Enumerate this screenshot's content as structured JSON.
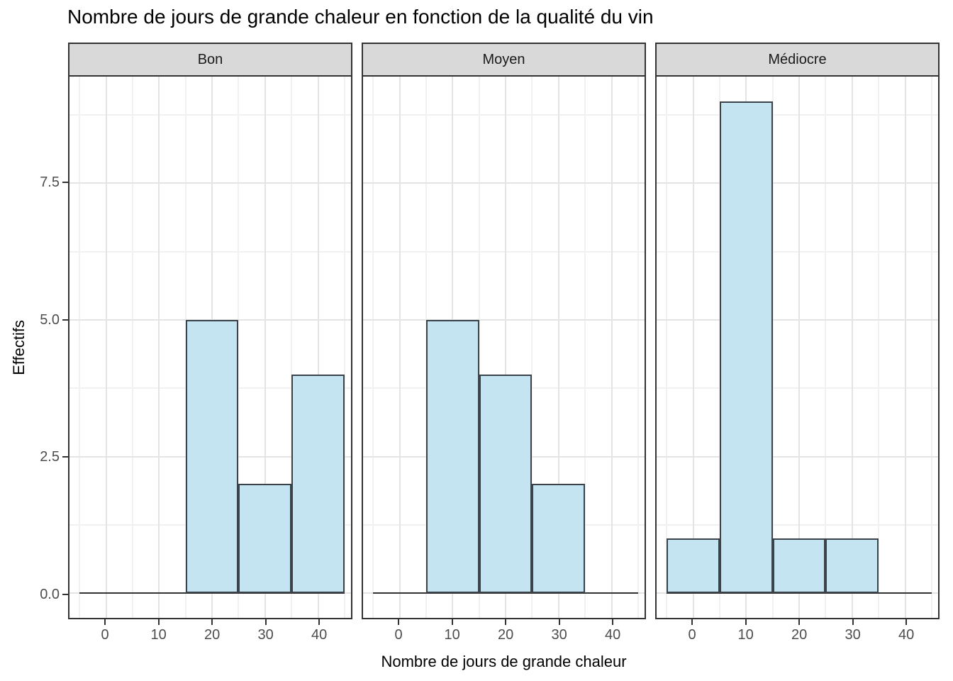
{
  "title": "Nombre de jours de grande chaleur en fonction de la qualité du vin",
  "x_axis_label": "Nombre de jours de grande chaleur",
  "y_axis_label": "Effectifs",
  "colors": {
    "bar_fill": "#C4E4F2",
    "bar_stroke": "#3A424A",
    "panel_border": "#333333",
    "strip_background": "#D9D9D9",
    "grid_major": "#E4E4E4",
    "grid_minor": "#F1F1F1",
    "tick_label": "#4D4D4D",
    "axis_line": "#333333"
  },
  "chart_data": {
    "type": "bar",
    "subtype": "faceted-histogram",
    "title": "Nombre de jours de grande chaleur en fonction de la qualité du vin",
    "xlabel": "Nombre de jours de grande chaleur",
    "ylabel": "Effectifs",
    "bin_width": 10,
    "facets": [
      {
        "label": "Bon",
        "bins": [
          {
            "x0": 15,
            "x1": 25,
            "count": 5
          },
          {
            "x0": 25,
            "x1": 35,
            "count": 2
          },
          {
            "x0": 35,
            "x1": 45,
            "count": 4
          }
        ]
      },
      {
        "label": "Moyen",
        "bins": [
          {
            "x0": 5,
            "x1": 15,
            "count": 5
          },
          {
            "x0": 15,
            "x1": 25,
            "count": 4
          },
          {
            "x0": 25,
            "x1": 35,
            "count": 2
          }
        ]
      },
      {
        "label": "Médiocre",
        "bins": [
          {
            "x0": -5,
            "x1": 5,
            "count": 1
          },
          {
            "x0": 5,
            "x1": 15,
            "count": 9
          },
          {
            "x0": 15,
            "x1": 25,
            "count": 1
          },
          {
            "x0": 25,
            "x1": 35,
            "count": 1
          }
        ]
      }
    ],
    "x_ticks": [
      0,
      10,
      20,
      30,
      40
    ],
    "x_minor": [
      -5,
      5,
      15,
      25,
      35,
      45
    ],
    "y_ticks": [
      {
        "value": 0,
        "label": "0.0"
      },
      {
        "value": 2.5,
        "label": "2.5"
      },
      {
        "value": 5,
        "label": "5.0"
      },
      {
        "value": 7.5,
        "label": "7.5"
      }
    ],
    "y_minor": [
      1.25,
      3.75,
      6.25,
      8.75
    ],
    "x_range": [
      -6.9,
      46.2
    ],
    "y_range": [
      -0.45,
      9.45
    ],
    "baseline": {
      "x0": -5,
      "x1": 45,
      "y": 0
    },
    "grid": true,
    "legend": "none"
  }
}
